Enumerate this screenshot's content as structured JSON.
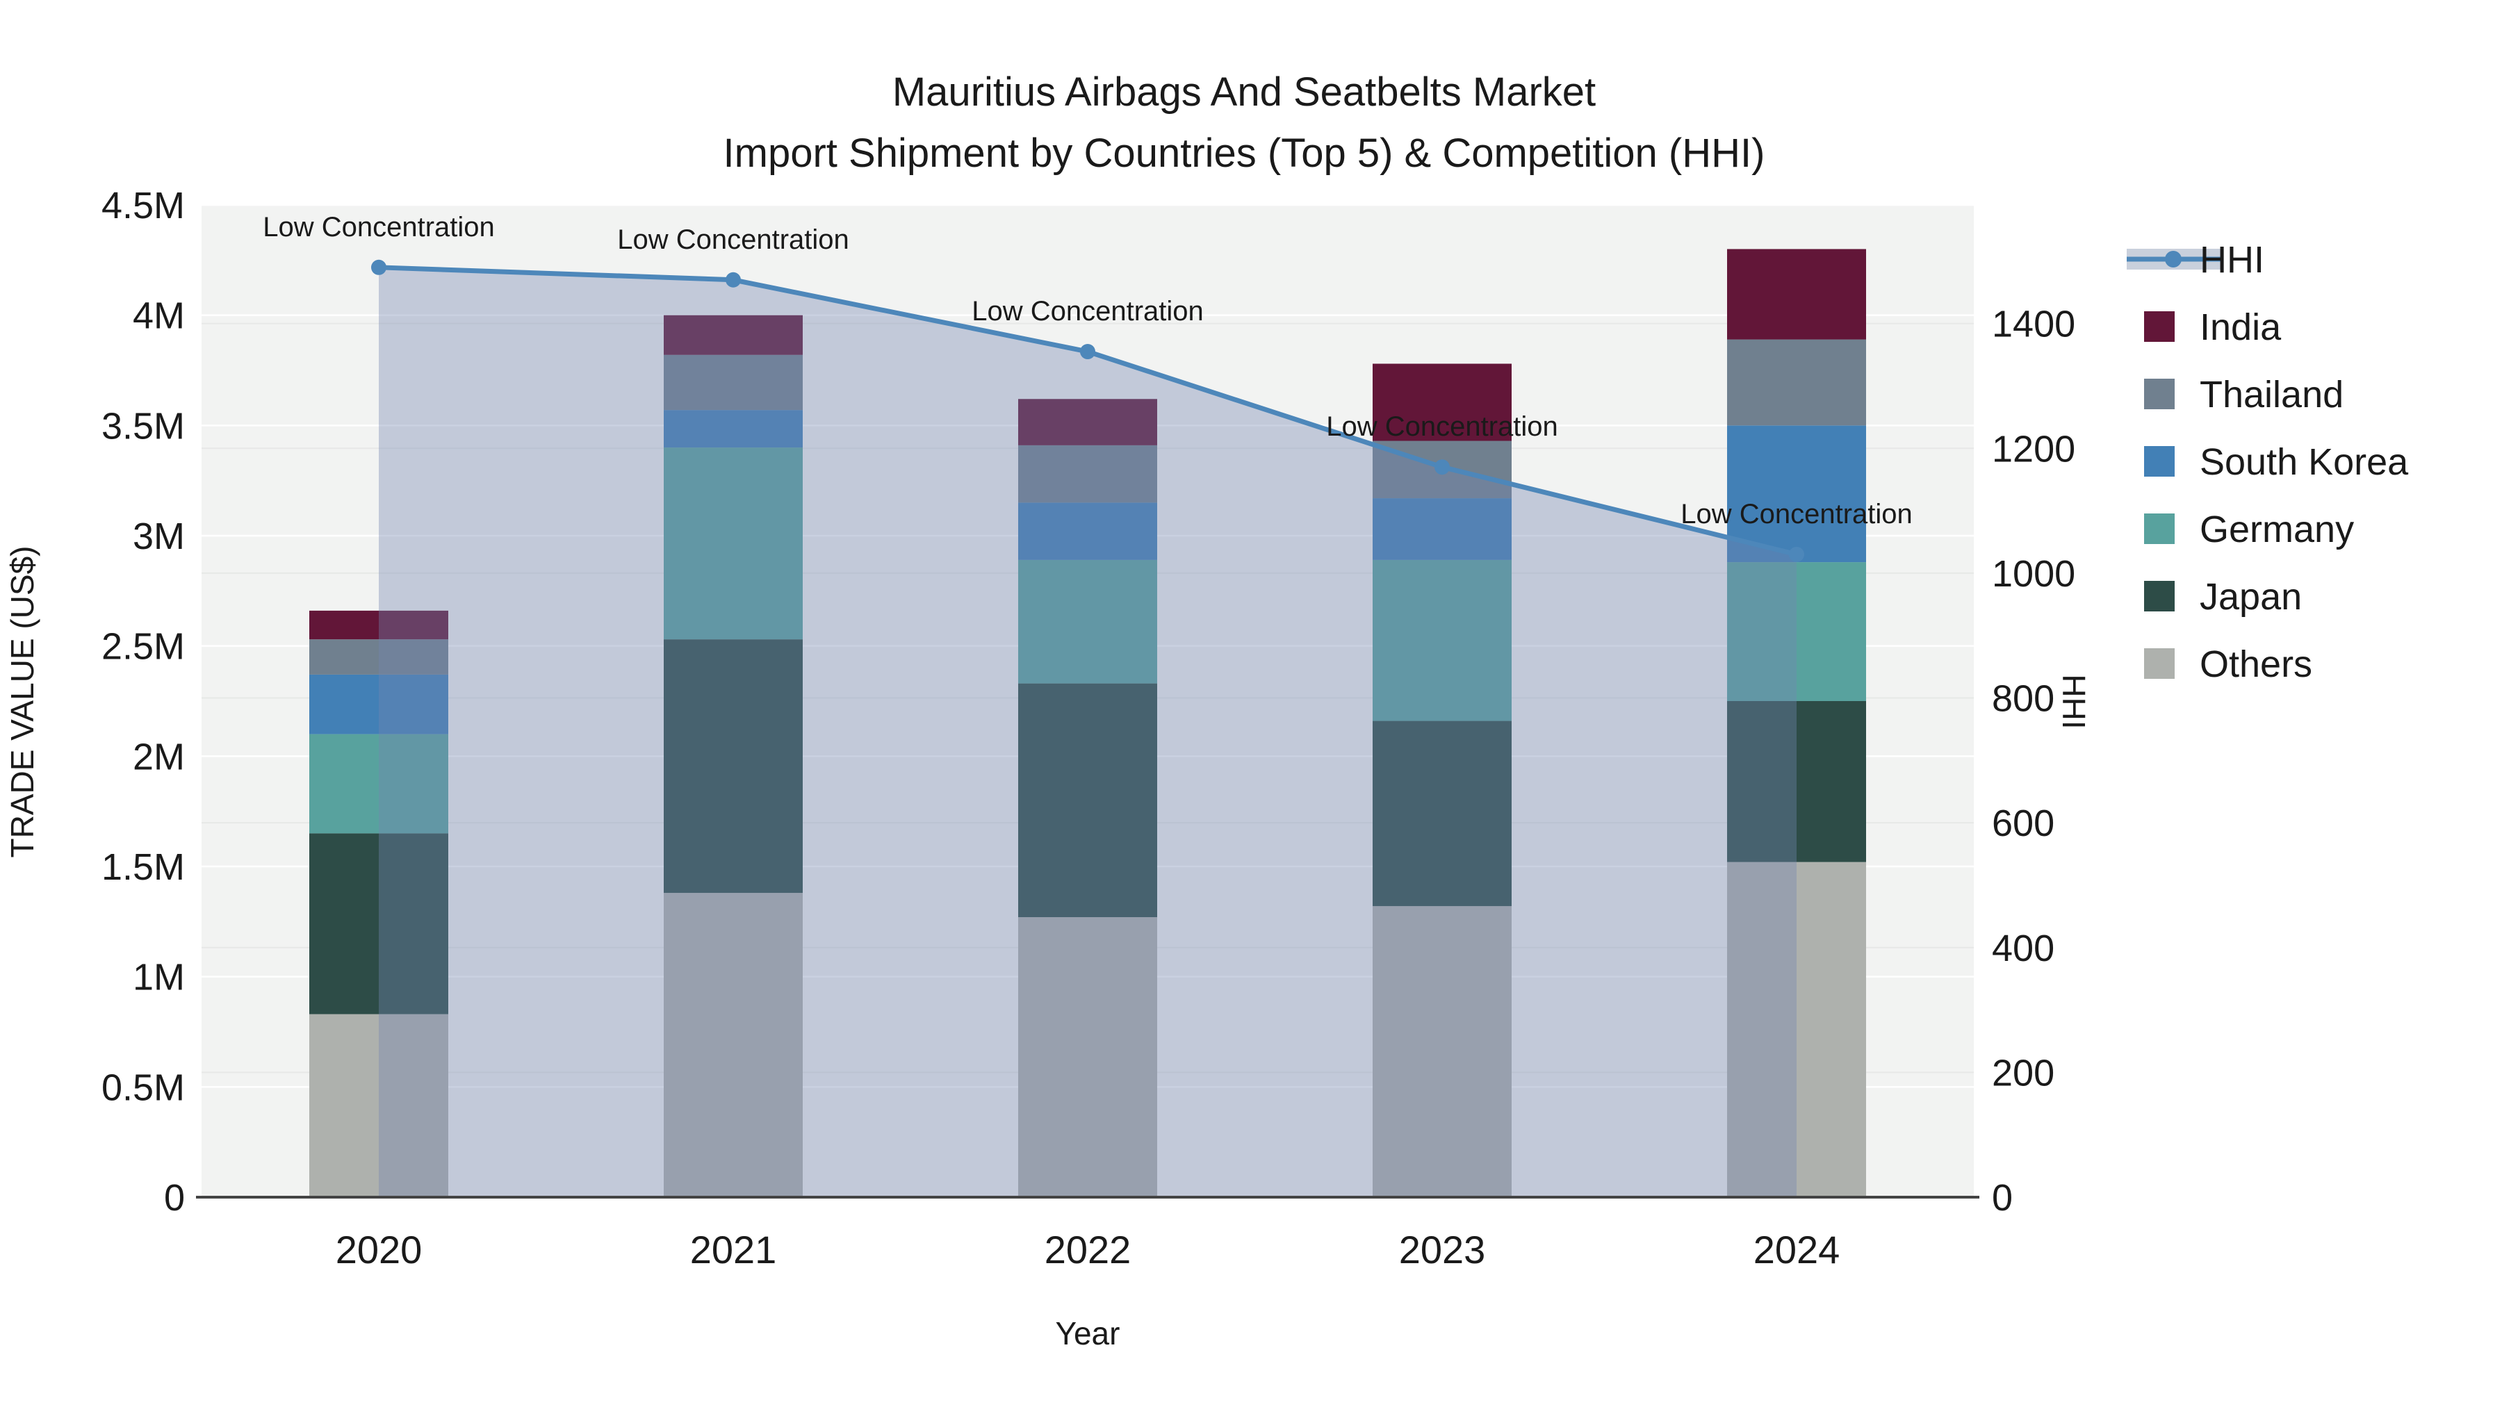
{
  "header": {
    "title_line1": "Mauritius Airbags And Seatbelts Market",
    "title_line2": "Import Shipment by Countries (Top 5) & Competition (HHI)"
  },
  "axes": {
    "y_label": "TRADE VALUE (US$)",
    "y2_label": "HHI",
    "x_label": "Year"
  },
  "legend": {
    "items": [
      {
        "label": "HHI",
        "type": "line"
      },
      {
        "label": "India",
        "type": "box"
      },
      {
        "label": "Thailand",
        "type": "box"
      },
      {
        "label": "South Korea",
        "type": "box"
      },
      {
        "label": "Germany",
        "type": "box"
      },
      {
        "label": "Japan",
        "type": "box"
      },
      {
        "label": "Others",
        "type": "box"
      }
    ]
  },
  "colors": {
    "hhi_line": "#4d87ba",
    "hhi_fill": "rgba(115,135,175,0.38)",
    "hhi_legend_band": "#c9d0dc",
    "plot_bg": "#f2f3f2",
    "axis_line": "#444444",
    "grid_major": "#ffffff",
    "grid_minor": "#e7e8e7"
  },
  "chart_data": {
    "type": "bar",
    "subtype": "stacked-bars-with-line",
    "unit": "million US$",
    "categories": [
      "2020",
      "2021",
      "2022",
      "2023",
      "2024"
    ],
    "series": [
      {
        "name": "Others",
        "color": "#aeb1ad",
        "values": [
          0.83,
          1.38,
          1.27,
          1.32,
          1.52
        ]
      },
      {
        "name": "Japan",
        "color": "#2d4c47",
        "values": [
          0.82,
          1.15,
          1.06,
          0.84,
          0.73
        ]
      },
      {
        "name": "Germany",
        "color": "#58a29e",
        "values": [
          0.45,
          0.87,
          0.56,
          0.73,
          0.63
        ]
      },
      {
        "name": "South Korea",
        "color": "#4280b6",
        "values": [
          0.27,
          0.17,
          0.26,
          0.28,
          0.62
        ]
      },
      {
        "name": "Thailand",
        "color": "#70808f",
        "values": [
          0.16,
          0.25,
          0.26,
          0.26,
          0.39
        ]
      },
      {
        "name": "India",
        "color": "#621638",
        "values": [
          0.13,
          0.18,
          0.21,
          0.35,
          0.41
        ]
      }
    ],
    "bar_totals": [
      2.66,
      4.0,
      3.62,
      3.78,
      4.3
    ],
    "line_series": {
      "name": "HHI",
      "axis": "right",
      "values": [
        1490,
        1470,
        1355,
        1170,
        1030
      ],
      "annotations": [
        "Low Concentration",
        "Low Concentration",
        "Low Concentration",
        "Low Concentration",
        "Low Concentration"
      ]
    },
    "y_ticks": {
      "values": [
        0,
        0.5,
        1,
        1.5,
        2,
        2.5,
        3,
        3.5,
        4,
        4.5
      ],
      "labels": [
        "0",
        "0.5M",
        "1M",
        "1.5M",
        "2M",
        "2.5M",
        "3M",
        "3.5M",
        "4M",
        "4.5M"
      ]
    },
    "y2_ticks": {
      "values": [
        0,
        200,
        400,
        600,
        800,
        1000,
        1200,
        1400
      ],
      "labels": [
        "0",
        "200",
        "400",
        "600",
        "800",
        "1000",
        "1200",
        "1400"
      ]
    },
    "ylim": [
      0,
      4.5
    ],
    "y2lim": [
      0,
      1590
    ],
    "grid": true,
    "legend_position": "right"
  }
}
